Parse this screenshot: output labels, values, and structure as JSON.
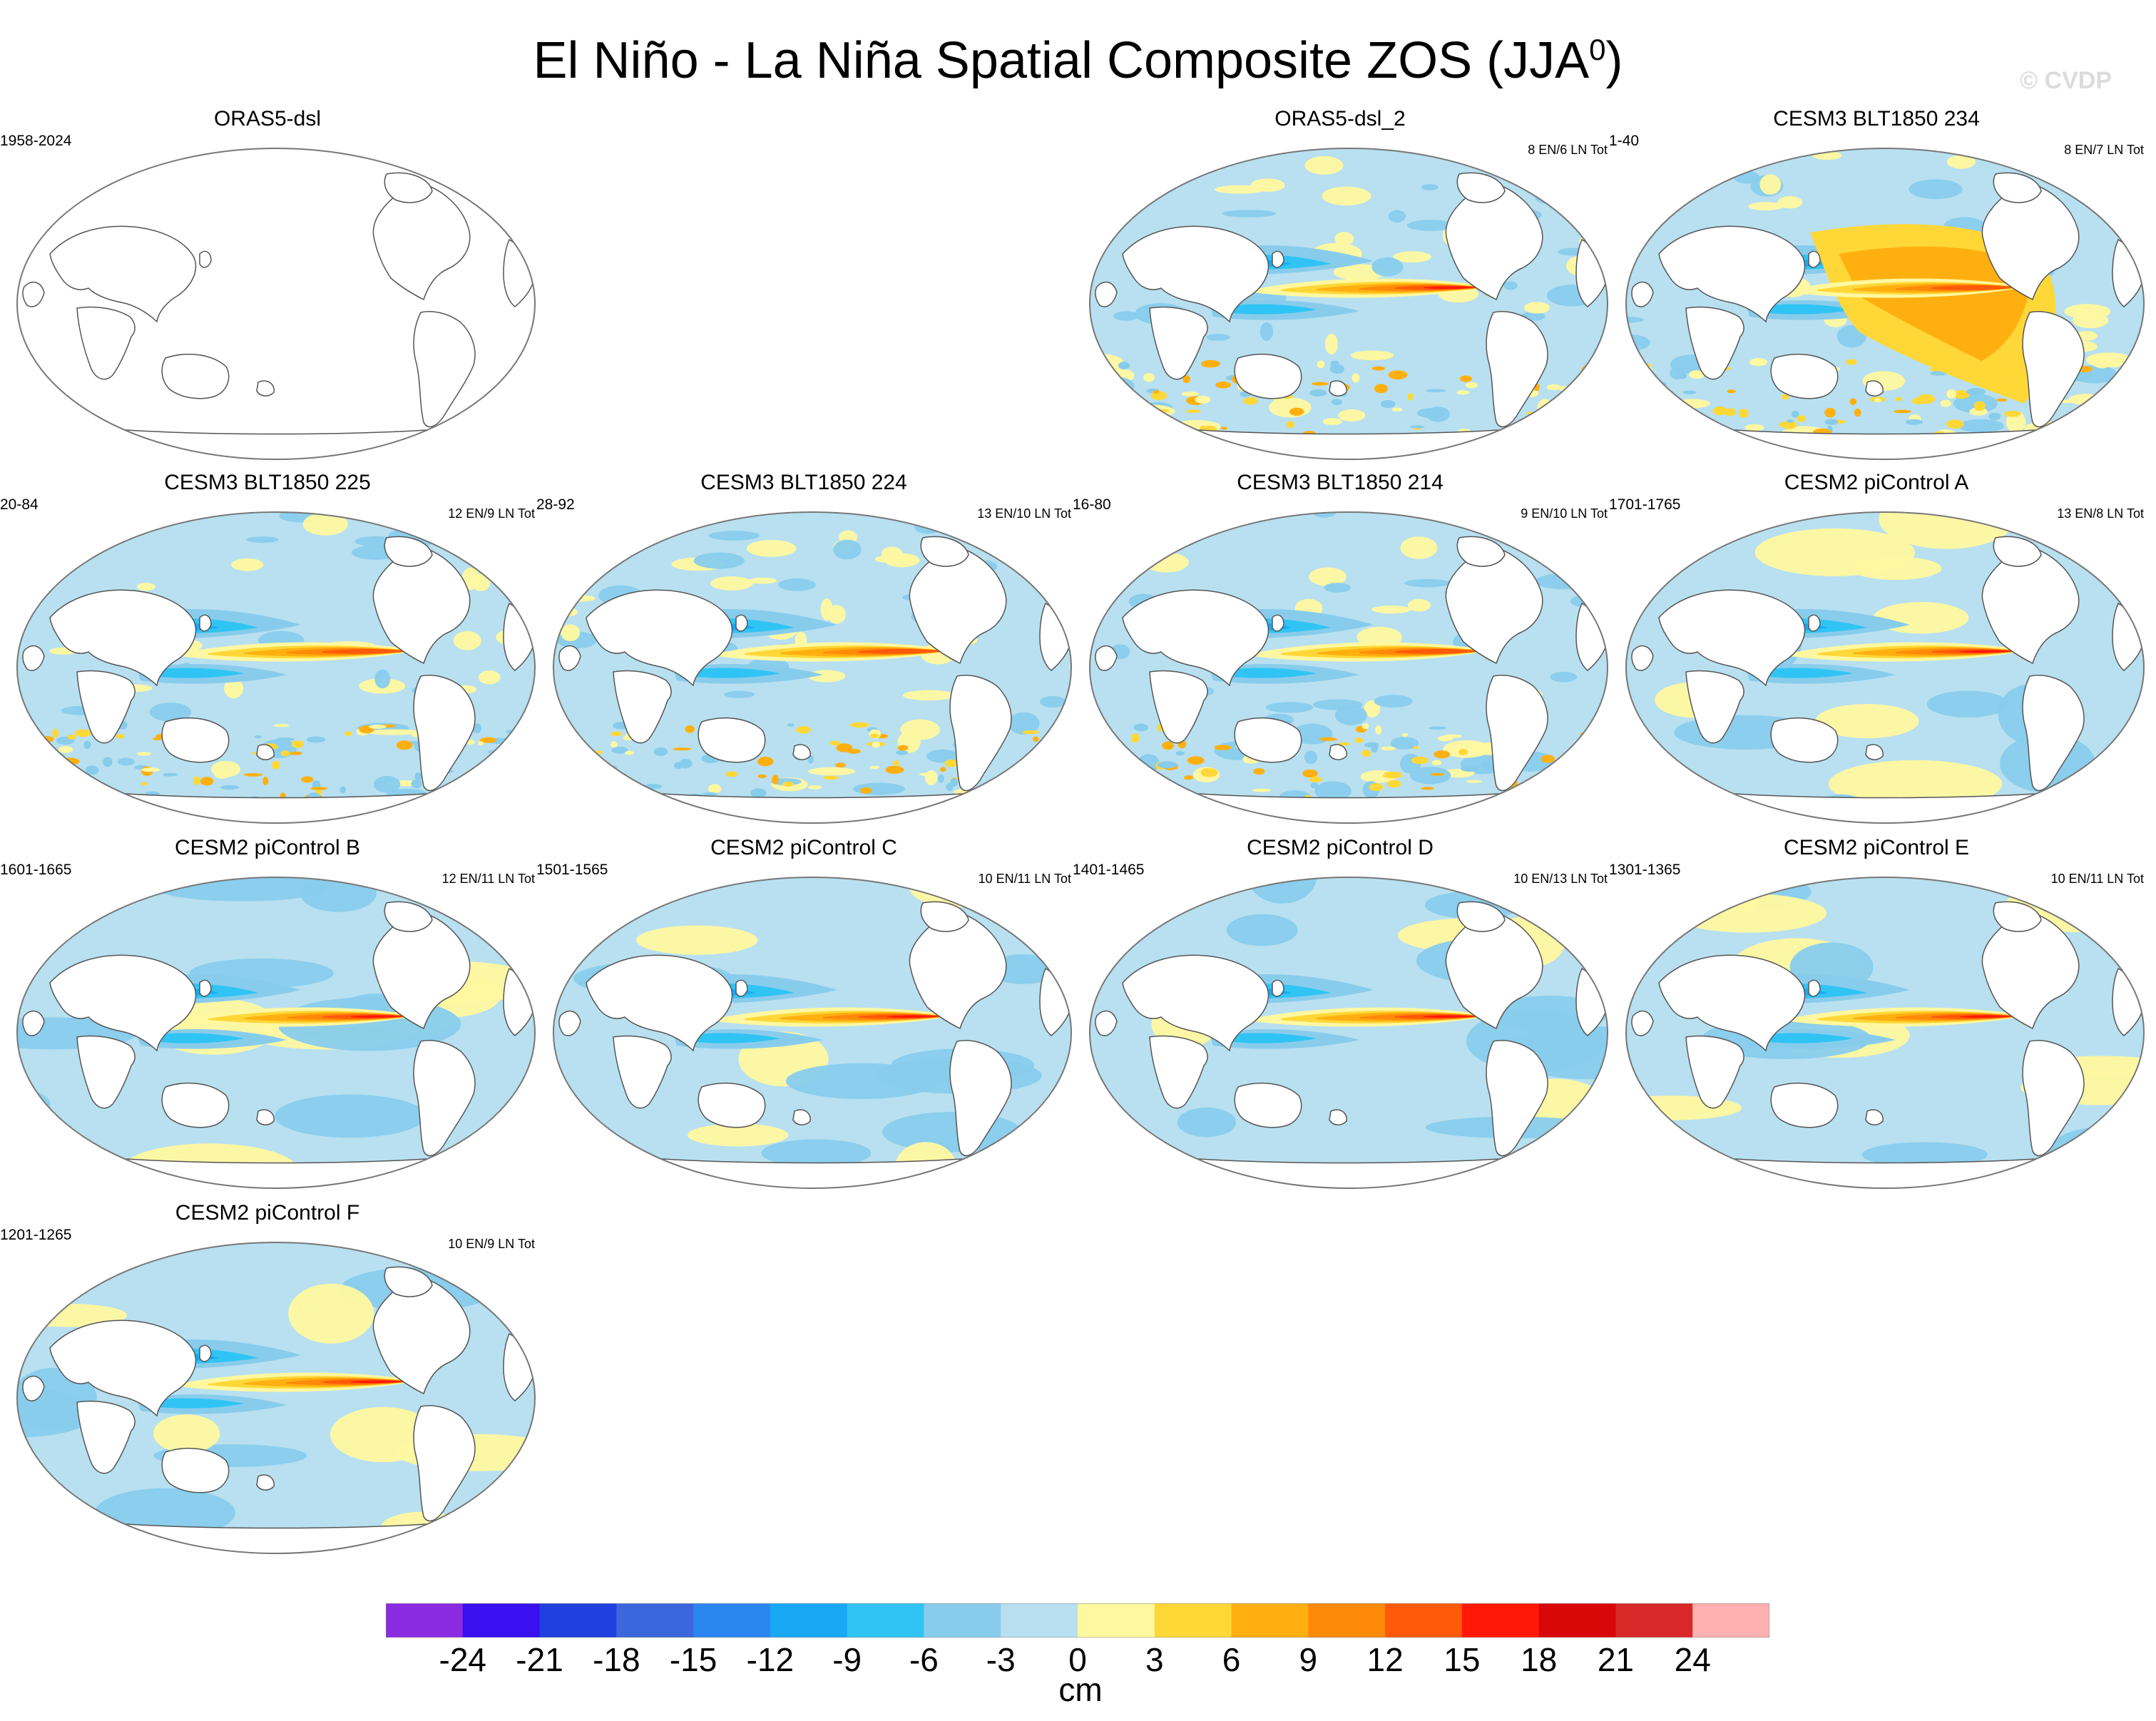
{
  "title": {
    "main": "El Niño - La Niña Spatial Composite ZOS (JJA",
    "sup": "0",
    "close": ")"
  },
  "watermark": "© CVDP",
  "colors": {
    "land": "#ffffff",
    "blank_ocean": "#ffffff",
    "coast": "#555555",
    "border": "#777777"
  },
  "panels": [
    {
      "name": "ORAS5-dsl",
      "years": "1958-2024",
      "counts": "",
      "pattern": "blank"
    },
    {
      "name": "ORAS5-dsl_2",
      "years": "",
      "counts": "8 EN/6 LN Tot",
      "pattern": "noisy-strong"
    },
    {
      "name": "CESM3 BLT1850 234",
      "years": "1-40",
      "counts": "8 EN/7 LN Tot",
      "pattern": "noisy-warm"
    },
    {
      "name": "CESM3 BLT1850 225",
      "years": "20-84",
      "counts": "12 EN/9 LN Tot",
      "pattern": "noisy"
    },
    {
      "name": "CESM3 BLT1850 224",
      "years": "28-92",
      "counts": "13 EN/10 LN Tot",
      "pattern": "noisy"
    },
    {
      "name": "CESM3 BLT1850 214",
      "years": "16-80",
      "counts": "9 EN/10 LN Tot",
      "pattern": "noisy"
    },
    {
      "name": "CESM2 piControl A",
      "years": "1701-1765",
      "counts": "13 EN/8 LN Tot",
      "pattern": "smooth"
    },
    {
      "name": "CESM2 piControl B",
      "years": "1601-1665",
      "counts": "12 EN/11 LN Tot",
      "pattern": "smooth"
    },
    {
      "name": "CESM2 piControl C",
      "years": "1501-1565",
      "counts": "10 EN/11 LN Tot",
      "pattern": "smooth"
    },
    {
      "name": "CESM2 piControl D",
      "years": "1401-1465",
      "counts": "10 EN/13 LN Tot",
      "pattern": "smooth"
    },
    {
      "name": "CESM2 piControl E",
      "years": "1301-1365",
      "counts": "10 EN/11 LN Tot",
      "pattern": "smooth"
    },
    {
      "name": "CESM2 piControl F",
      "years": "1201-1265",
      "counts": "10 EN/9 LN Tot",
      "pattern": "smooth"
    }
  ],
  "colorbar": {
    "label": "cm",
    "ticks": [
      "-24",
      "-21",
      "-18",
      "-15",
      "-12",
      "-9",
      "-6",
      "-3",
      "0",
      "3",
      "6",
      "9",
      "12",
      "15",
      "18",
      "21",
      "24"
    ],
    "colors": [
      "#8a2be2",
      "#3a10f0",
      "#2040e0",
      "#3a68dc",
      "#2a86f0",
      "#18a8f4",
      "#30c4f4",
      "#88ccec",
      "#b8e0f0",
      "#fff8a0",
      "#ffd838",
      "#ffb010",
      "#ff8a08",
      "#ff5a08",
      "#ff1808",
      "#d80808",
      "#d82828",
      "#ffb0b0"
    ]
  }
}
